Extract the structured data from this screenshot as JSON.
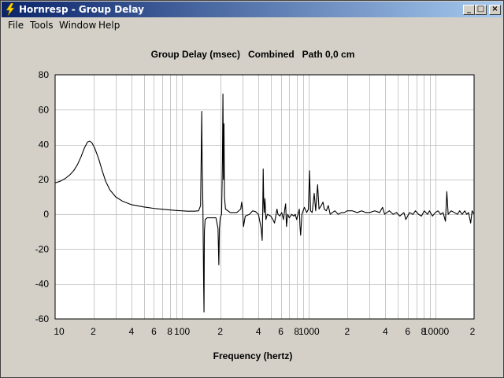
{
  "window": {
    "title": "Hornresp - Group Delay",
    "buttons": {
      "minimize": "_",
      "maximize": "□",
      "close": "×"
    }
  },
  "menu": [
    "File",
    "Tools",
    "Window",
    "Help"
  ],
  "chart_data": {
    "type": "line",
    "title": "Group Delay (msec)   Combined   Path 0,0 cm",
    "xlabel": "Frequency (hertz)",
    "ylabel": "",
    "x_scale": "log",
    "xlim": [
      10,
      20000
    ],
    "ylim": [
      -60,
      80
    ],
    "y_ticks": [
      80,
      60,
      40,
      20,
      0,
      -20,
      -40,
      -60
    ],
    "x_tick_labels": [
      {
        "value": 10,
        "label": "10"
      },
      {
        "value": 20,
        "label": "2"
      },
      {
        "value": 40,
        "label": "4"
      },
      {
        "value": 60,
        "label": "6"
      },
      {
        "value": 80,
        "label": "8"
      },
      {
        "value": 100,
        "label": "100"
      },
      {
        "value": 200,
        "label": "2"
      },
      {
        "value": 400,
        "label": "4"
      },
      {
        "value": 600,
        "label": "6"
      },
      {
        "value": 800,
        "label": "8"
      },
      {
        "value": 1000,
        "label": "1000"
      },
      {
        "value": 2000,
        "label": "2"
      },
      {
        "value": 4000,
        "label": "4"
      },
      {
        "value": 6000,
        "label": "6"
      },
      {
        "value": 8000,
        "label": "8"
      },
      {
        "value": 10000,
        "label": "10000"
      },
      {
        "value": 20000,
        "label": "2"
      }
    ],
    "grid": true,
    "series": [
      {
        "color": "#000000",
        "points": [
          [
            10,
            18
          ],
          [
            11,
            19
          ],
          [
            12,
            20.5
          ],
          [
            13,
            22.5
          ],
          [
            14,
            25
          ],
          [
            15,
            28.5
          ],
          [
            16,
            33
          ],
          [
            17,
            38
          ],
          [
            18,
            41.5
          ],
          [
            18.7,
            42
          ],
          [
            19.5,
            41
          ],
          [
            20.5,
            38
          ],
          [
            22,
            32
          ],
          [
            23.5,
            25
          ],
          [
            25,
            19
          ],
          [
            27,
            14
          ],
          [
            30,
            10
          ],
          [
            34,
            7.5
          ],
          [
            40,
            5.5
          ],
          [
            50,
            4.2
          ],
          [
            60,
            3.4
          ],
          [
            70,
            2.9
          ],
          [
            80,
            2.5
          ],
          [
            90,
            2.2
          ],
          [
            100,
            2.0
          ],
          [
            110,
            1.8
          ],
          [
            125,
            1.8
          ],
          [
            135,
            2.0
          ],
          [
            140,
            5
          ],
          [
            142,
            40
          ],
          [
            143,
            59
          ],
          [
            144,
            30
          ],
          [
            146,
            5
          ],
          [
            148,
            -40
          ],
          [
            149,
            -56
          ],
          [
            150,
            -10
          ],
          [
            152,
            -3
          ],
          [
            158,
            -2
          ],
          [
            170,
            -2
          ],
          [
            185,
            -2
          ],
          [
            192,
            -8
          ],
          [
            195,
            -29
          ],
          [
            197,
            -8
          ],
          [
            200,
            -2
          ],
          [
            205,
            0
          ],
          [
            208,
            30
          ],
          [
            210,
            69
          ],
          [
            212,
            20
          ],
          [
            214,
            52
          ],
          [
            216,
            10
          ],
          [
            220,
            3
          ],
          [
            240,
            1
          ],
          [
            270,
            1
          ],
          [
            290,
            3
          ],
          [
            295,
            7
          ],
          [
            300,
            2
          ],
          [
            305,
            -7
          ],
          [
            315,
            -1
          ],
          [
            340,
            0
          ],
          [
            360,
            2
          ],
          [
            380,
            1.5
          ],
          [
            400,
            0
          ],
          [
            420,
            -8
          ],
          [
            428,
            -15
          ],
          [
            432,
            0
          ],
          [
            436,
            26
          ],
          [
            440,
            8
          ],
          [
            444,
            1
          ],
          [
            450,
            9
          ],
          [
            458,
            -3
          ],
          [
            470,
            0
          ],
          [
            500,
            -1
          ],
          [
            520,
            -3
          ],
          [
            535,
            -5
          ],
          [
            548,
            -1
          ],
          [
            560,
            3
          ],
          [
            570,
            0
          ],
          [
            590,
            -1
          ],
          [
            610,
            1
          ],
          [
            630,
            -3
          ],
          [
            645,
            3
          ],
          [
            655,
            6
          ],
          [
            665,
            -7
          ],
          [
            680,
            0
          ],
          [
            700,
            -2
          ],
          [
            730,
            0
          ],
          [
            760,
            -1
          ],
          [
            780,
            0
          ],
          [
            800,
            -3
          ],
          [
            820,
            0
          ],
          [
            840,
            3
          ],
          [
            850,
            -7
          ],
          [
            860,
            -12
          ],
          [
            880,
            0
          ],
          [
            920,
            4
          ],
          [
            960,
            1
          ],
          [
            990,
            3
          ],
          [
            1010,
            25
          ],
          [
            1030,
            2
          ],
          [
            1060,
            1
          ],
          [
            1100,
            12
          ],
          [
            1130,
            2
          ],
          [
            1170,
            17
          ],
          [
            1200,
            3
          ],
          [
            1250,
            5
          ],
          [
            1290,
            7
          ],
          [
            1320,
            3
          ],
          [
            1370,
            2
          ],
          [
            1420,
            5
          ],
          [
            1470,
            0
          ],
          [
            1530,
            1
          ],
          [
            1600,
            2
          ],
          [
            1700,
            0
          ],
          [
            1800,
            1
          ],
          [
            1900,
            1
          ],
          [
            2000,
            2
          ],
          [
            2200,
            2
          ],
          [
            2400,
            1
          ],
          [
            2600,
            2
          ],
          [
            2800,
            1
          ],
          [
            3000,
            1
          ],
          [
            3300,
            2
          ],
          [
            3600,
            1
          ],
          [
            3800,
            4
          ],
          [
            3950,
            0
          ],
          [
            4100,
            1
          ],
          [
            4300,
            2
          ],
          [
            4600,
            0
          ],
          [
            4900,
            1
          ],
          [
            5200,
            -1
          ],
          [
            5600,
            1
          ],
          [
            5800,
            -3
          ],
          [
            6200,
            1
          ],
          [
            6600,
            0
          ],
          [
            6900,
            2
          ],
          [
            7300,
            0
          ],
          [
            7700,
            -1
          ],
          [
            8100,
            2
          ],
          [
            8600,
            0
          ],
          [
            8900,
            2
          ],
          [
            9400,
            -1
          ],
          [
            9900,
            1
          ],
          [
            10400,
            2
          ],
          [
            10900,
            0
          ],
          [
            11400,
            1
          ],
          [
            11900,
            -4
          ],
          [
            12200,
            13
          ],
          [
            12500,
            0
          ],
          [
            13200,
            2
          ],
          [
            14000,
            1
          ],
          [
            14800,
            0
          ],
          [
            15400,
            2
          ],
          [
            16100,
            0
          ],
          [
            16900,
            2
          ],
          [
            17500,
            0
          ],
          [
            18100,
            1
          ],
          [
            18800,
            -5
          ],
          [
            19300,
            2
          ],
          [
            20000,
            0
          ]
        ]
      }
    ]
  }
}
